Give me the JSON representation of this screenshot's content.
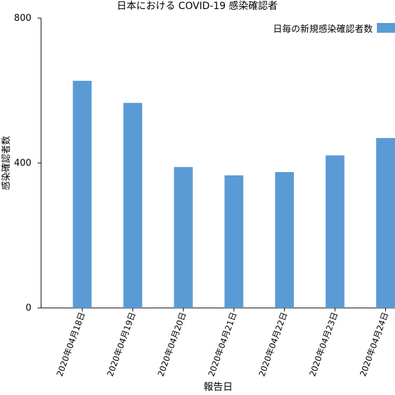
{
  "chart_data": {
    "type": "bar",
    "title": "日本における COVID-19 感染確認者",
    "xlabel": "報告日",
    "ylabel": "感染確認者数",
    "categories": [
      "2020年04月18日",
      "2020年04月19日",
      "2020年04月20日",
      "2020年04月21日",
      "2020年04月22日",
      "2020年04月23日",
      "2020年04月24日"
    ],
    "series": [
      {
        "name": "日毎の新規感染確認者数",
        "values": [
          627,
          566,
          389,
          366,
          375,
          421,
          469
        ],
        "color": "#5b9bd5"
      }
    ],
    "ylim": [
      0,
      800
    ],
    "yticks": [
      "0",
      "400",
      "800"
    ],
    "grid": false,
    "legend": "top-right"
  }
}
